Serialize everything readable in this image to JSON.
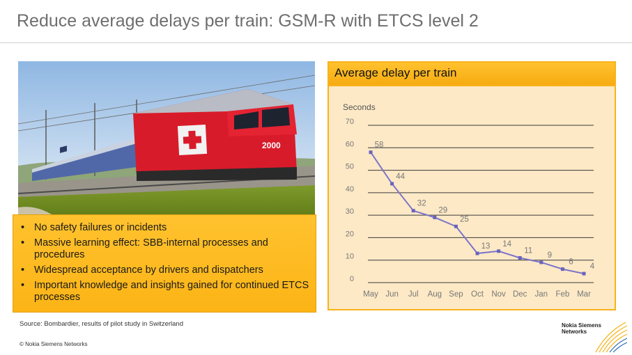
{
  "slide": {
    "title": "Reduce average delays per train: GSM-R with ETCS level 2",
    "bullets": [
      "No safety failures or incidents",
      "Massive learning effect: SBB-internal processes and procedures",
      "Widespread acceptance by drivers and dispatchers",
      "Important knowledge and insights gained for continued ETCS processes"
    ],
    "source": "Source: Bombardier, results of pilot study in Switzerland",
    "copyright": "© Nokia Siemens Networks",
    "logo_text": "Nokia Siemens Networks",
    "locomotive_number": "2000",
    "accent_color": "#fcb416"
  },
  "chart_data": {
    "type": "line",
    "title": "Average delay per train",
    "ylabel": "Seconds",
    "xlabel": "",
    "categories": [
      "May",
      "Jun",
      "Jul",
      "Aug",
      "Sep",
      "Oct",
      "Nov",
      "Dec",
      "Jan",
      "Feb",
      "Mar"
    ],
    "values": [
      58,
      44,
      32,
      29,
      25,
      13,
      14,
      11,
      9,
      6,
      4
    ],
    "data_labels": [
      "58",
      "44",
      "32",
      "29",
      "25",
      "13",
      "14",
      "11",
      "9",
      "6",
      "4"
    ],
    "ylim": [
      0,
      70
    ],
    "yticks": [
      0,
      10,
      20,
      30,
      40,
      50,
      60,
      70
    ],
    "grid": true,
    "line_color": "#7b74c9",
    "marker_color": "#6a63bd"
  }
}
